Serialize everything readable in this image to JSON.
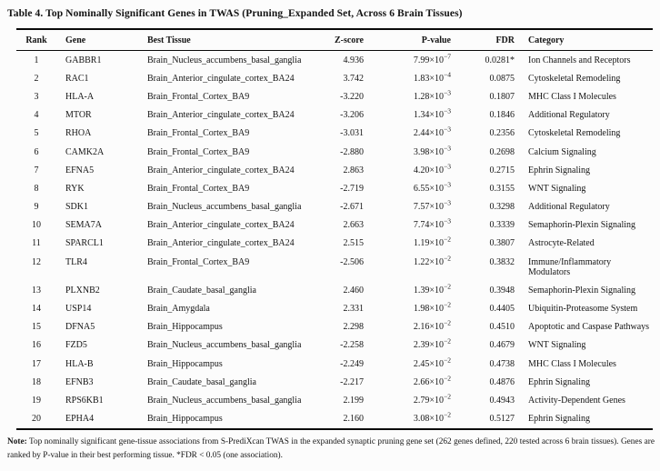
{
  "title": "Table 4. Top Nominally Significant Genes in TWAS (Pruning_Expanded Set, Across 6 Brain Tissues)",
  "table": {
    "columns": [
      "Rank",
      "Gene",
      "Best Tissue",
      "Z-score",
      "P-value",
      "FDR",
      "Category"
    ],
    "rows": [
      {
        "rank": "1",
        "gene": "GABBR1",
        "tissue": "Brain_Nucleus_accumbens_basal_ganglia",
        "z": "4.936",
        "p_base": "7.99×10",
        "p_exp": "−7",
        "fdr": "0.0281*",
        "category": "Ion Channels and Receptors"
      },
      {
        "rank": "2",
        "gene": "RAC1",
        "tissue": "Brain_Anterior_cingulate_cortex_BA24",
        "z": "3.742",
        "p_base": "1.83×10",
        "p_exp": "−4",
        "fdr": "0.0875",
        "category": "Cytoskeletal Remodeling"
      },
      {
        "rank": "3",
        "gene": "HLA-A",
        "tissue": "Brain_Frontal_Cortex_BA9",
        "z": "-3.220",
        "p_base": "1.28×10",
        "p_exp": "−3",
        "fdr": "0.1807",
        "category": "MHC Class I Molecules"
      },
      {
        "rank": "4",
        "gene": "MTOR",
        "tissue": "Brain_Anterior_cingulate_cortex_BA24",
        "z": "-3.206",
        "p_base": "1.34×10",
        "p_exp": "−3",
        "fdr": "0.1846",
        "category": "Additional Regulatory"
      },
      {
        "rank": "5",
        "gene": "RHOA",
        "tissue": "Brain_Frontal_Cortex_BA9",
        "z": "-3.031",
        "p_base": "2.44×10",
        "p_exp": "−3",
        "fdr": "0.2356",
        "category": "Cytoskeletal Remodeling"
      },
      {
        "rank": "6",
        "gene": "CAMK2A",
        "tissue": "Brain_Frontal_Cortex_BA9",
        "z": "-2.880",
        "p_base": "3.98×10",
        "p_exp": "−3",
        "fdr": "0.2698",
        "category": "Calcium Signaling"
      },
      {
        "rank": "7",
        "gene": "EFNA5",
        "tissue": "Brain_Anterior_cingulate_cortex_BA24",
        "z": "2.863",
        "p_base": "4.20×10",
        "p_exp": "−3",
        "fdr": "0.2715",
        "category": "Ephrin Signaling"
      },
      {
        "rank": "8",
        "gene": "RYK",
        "tissue": "Brain_Frontal_Cortex_BA9",
        "z": "-2.719",
        "p_base": "6.55×10",
        "p_exp": "−3",
        "fdr": "0.3155",
        "category": "WNT Signaling"
      },
      {
        "rank": "9",
        "gene": "SDK1",
        "tissue": "Brain_Nucleus_accumbens_basal_ganglia",
        "z": "-2.671",
        "p_base": "7.57×10",
        "p_exp": "−3",
        "fdr": "0.3298",
        "category": "Additional Regulatory"
      },
      {
        "rank": "10",
        "gene": "SEMA7A",
        "tissue": "Brain_Anterior_cingulate_cortex_BA24",
        "z": "2.663",
        "p_base": "7.74×10",
        "p_exp": "−3",
        "fdr": "0.3339",
        "category": "Semaphorin-Plexin Signaling"
      },
      {
        "rank": "11",
        "gene": "SPARCL1",
        "tissue": "Brain_Anterior_cingulate_cortex_BA24",
        "z": "2.515",
        "p_base": "1.19×10",
        "p_exp": "−2",
        "fdr": "0.3807",
        "category": "Astrocyte-Related"
      },
      {
        "rank": "12",
        "gene": "TLR4",
        "tissue": "Brain_Frontal_Cortex_BA9",
        "z": "-2.506",
        "p_base": "1.22×10",
        "p_exp": "−2",
        "fdr": "0.3832",
        "category": "Immune/Inflammatory Modulators"
      },
      {
        "rank": "13",
        "gene": "PLXNB2",
        "tissue": "Brain_Caudate_basal_ganglia",
        "z": "2.460",
        "p_base": "1.39×10",
        "p_exp": "−2",
        "fdr": "0.3948",
        "category": "Semaphorin-Plexin Signaling"
      },
      {
        "rank": "14",
        "gene": "USP14",
        "tissue": "Brain_Amygdala",
        "z": "2.331",
        "p_base": "1.98×10",
        "p_exp": "−2",
        "fdr": "0.4405",
        "category": "Ubiquitin-Proteasome System"
      },
      {
        "rank": "15",
        "gene": "DFNA5",
        "tissue": "Brain_Hippocampus",
        "z": "2.298",
        "p_base": "2.16×10",
        "p_exp": "−2",
        "fdr": "0.4510",
        "category": "Apoptotic and Caspase Pathways"
      },
      {
        "rank": "16",
        "gene": "FZD5",
        "tissue": "Brain_Nucleus_accumbens_basal_ganglia",
        "z": "-2.258",
        "p_base": "2.39×10",
        "p_exp": "−2",
        "fdr": "0.4679",
        "category": "WNT Signaling"
      },
      {
        "rank": "17",
        "gene": "HLA-B",
        "tissue": "Brain_Hippocampus",
        "z": "-2.249",
        "p_base": "2.45×10",
        "p_exp": "−2",
        "fdr": "0.4738",
        "category": "MHC Class I Molecules"
      },
      {
        "rank": "18",
        "gene": "EFNB3",
        "tissue": "Brain_Caudate_basal_ganglia",
        "z": "-2.217",
        "p_base": "2.66×10",
        "p_exp": "−2",
        "fdr": "0.4876",
        "category": "Ephrin Signaling"
      },
      {
        "rank": "19",
        "gene": "RPS6KB1",
        "tissue": "Brain_Nucleus_accumbens_basal_ganglia",
        "z": "2.199",
        "p_base": "2.79×10",
        "p_exp": "−2",
        "fdr": "0.4943",
        "category": "Activity-Dependent Genes"
      },
      {
        "rank": "20",
        "gene": "EPHA4",
        "tissue": "Brain_Hippocampus",
        "z": "2.160",
        "p_base": "3.08×10",
        "p_exp": "−2",
        "fdr": "0.5127",
        "category": "Ephrin Signaling"
      }
    ]
  },
  "note": {
    "label": "Note:",
    "text": "Top nominally significant gene-tissue associations from S-PrediXcan TWAS in the expanded synaptic pruning gene set (262 genes defined, 220 tested across 6 brain tissues). Genes are ranked by P-value in their best performing tissue. *FDR < 0.05 (one association)."
  },
  "colors": {
    "text": "#141414",
    "rule": "#0a0a0a",
    "background": "#fcfcfc"
  }
}
